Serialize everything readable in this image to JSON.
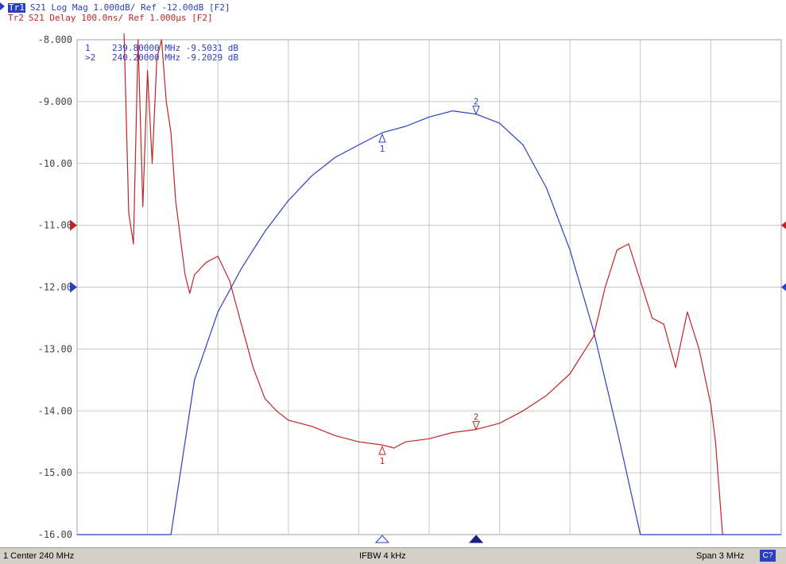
{
  "header": {
    "trace1_badge": "Tr1",
    "trace1_text": "S21 Log Mag 1.000dB/ Ref -12.00dB [F2]",
    "trace2_badge": "Tr2",
    "trace2_text": "S21 Delay 100.0ns/ Ref 1.000µs [F2]"
  },
  "markers_readout": [
    {
      "label": "1",
      "text": "239.80000 MHz -9.5031 dB"
    },
    {
      "label": ">2",
      "text": "240.20000 MHz -9.2029 dB"
    }
  ],
  "status_bar": {
    "left": "1 Center 240 MHz",
    "middle": "IFBW 4 kHz",
    "right": "Span 3 MHz",
    "badge": "C?"
  },
  "colors": {
    "trace1": "#2b3fbf",
    "trace2": "#c02525",
    "grid": "#c8c8c8",
    "background": "#ffffff"
  },
  "chart_data": {
    "type": "line",
    "title": "",
    "xlabel": "",
    "ylabel": "",
    "x_center_mhz": 240,
    "x_span_mhz": 3,
    "xlim": [
      238.5,
      241.5
    ],
    "ylim": [
      -16.0,
      -8.0
    ],
    "ytick_labels": [
      "-8.000",
      "-9.000",
      "-10.00",
      "-11.00",
      "-12.00",
      "-13.00",
      "-14.00",
      "-15.00",
      "-16.00"
    ],
    "grid": true,
    "series": [
      {
        "name": "Tr1",
        "x": [
          238.5,
          238.9,
          239.0,
          239.1,
          239.2,
          239.3,
          239.4,
          239.5,
          239.6,
          239.7,
          239.8,
          239.9,
          240.0,
          240.1,
          240.2,
          240.3,
          240.4,
          240.5,
          240.6,
          240.7,
          240.8,
          240.9,
          241.0,
          241.1,
          241.5
        ],
        "y": [
          -16.0,
          -16.0,
          -13.5,
          -12.4,
          -11.7,
          -11.1,
          -10.6,
          -10.2,
          -9.9,
          -9.7,
          -9.5031,
          -9.4,
          -9.25,
          -9.15,
          -9.2029,
          -9.35,
          -9.7,
          -10.4,
          -11.4,
          -12.7,
          -14.3,
          -16.0,
          -16.0,
          -16.0,
          -16.0
        ]
      },
      {
        "name": "Tr2",
        "x": [
          238.7,
          238.72,
          238.74,
          238.76,
          238.78,
          238.8,
          238.82,
          238.84,
          238.86,
          238.88,
          238.9,
          238.92,
          238.94,
          238.96,
          238.98,
          239.0,
          239.05,
          239.1,
          239.15,
          239.2,
          239.25,
          239.3,
          239.35,
          239.4,
          239.5,
          239.6,
          239.7,
          239.8,
          239.85,
          239.9,
          240.0,
          240.1,
          240.2,
          240.3,
          240.4,
          240.5,
          240.6,
          240.7,
          240.75,
          240.8,
          240.85,
          240.9,
          240.95,
          241.0,
          241.05,
          241.1,
          241.15,
          241.2,
          241.22,
          241.25
        ],
        "y": [
          -7.5,
          -10.8,
          -11.3,
          -8.0,
          -10.7,
          -8.5,
          -10.0,
          -8.3,
          -8.0,
          -9.0,
          -9.5,
          -10.6,
          -11.2,
          -11.8,
          -12.1,
          -11.8,
          -11.6,
          -11.5,
          -11.9,
          -12.6,
          -13.3,
          -13.8,
          -14.0,
          -14.15,
          -14.25,
          -14.4,
          -14.5,
          -14.55,
          -14.6,
          -14.5,
          -14.45,
          -14.35,
          -14.3,
          -14.2,
          -14.0,
          -13.75,
          -13.4,
          -12.8,
          -12.0,
          -11.4,
          -11.3,
          -11.9,
          -12.5,
          -12.6,
          -13.3,
          -12.4,
          -13.0,
          -13.9,
          -14.5,
          -17.0
        ]
      }
    ],
    "markers": [
      {
        "id": "1",
        "x": 239.8,
        "y": -9.5031
      },
      {
        "id": "2",
        "x": 240.2,
        "y": -9.2029
      }
    ]
  }
}
